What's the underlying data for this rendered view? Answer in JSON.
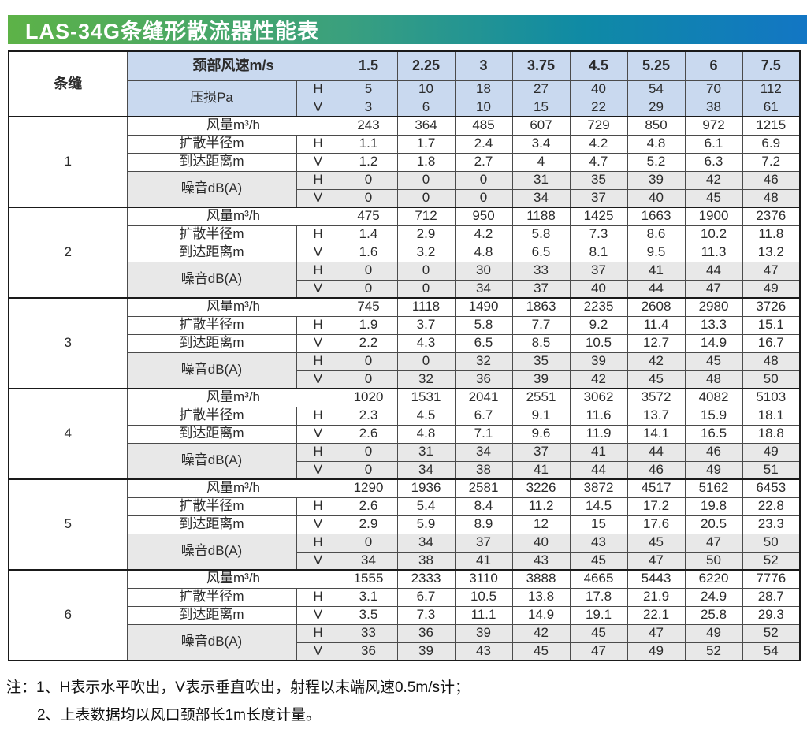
{
  "title": "LAS-34G条缝形散流器性能表",
  "table": {
    "corner_label": "条缝",
    "header": {
      "neck_velocity_label": "颈部风速m/s",
      "velocities": [
        "1.5",
        "2.25",
        "3",
        "3.75",
        "4.5",
        "5.25",
        "6",
        "7.5"
      ],
      "pressure_loss_label": "压损Pa",
      "h_label": "H",
      "v_label": "V",
      "pressure_h": [
        "5",
        "10",
        "18",
        "27",
        "40",
        "54",
        "70",
        "112"
      ],
      "pressure_v": [
        "3",
        "6",
        "10",
        "15",
        "22",
        "29",
        "38",
        "61"
      ]
    },
    "row_labels": {
      "airflow": "风量m³/h",
      "radius": "扩散半径m",
      "distance": "到达距离m",
      "noise": "噪音dB(A)"
    },
    "sections": [
      {
        "slots": "1",
        "airflow": [
          "243",
          "364",
          "485",
          "607",
          "729",
          "850",
          "972",
          "1215"
        ],
        "radius_h": [
          "1.1",
          "1.7",
          "2.4",
          "3.4",
          "4.2",
          "4.8",
          "6.1",
          "6.9"
        ],
        "distance_v": [
          "1.2",
          "1.8",
          "2.7",
          "4",
          "4.7",
          "5.2",
          "6.3",
          "7.2"
        ],
        "noise_h": [
          "0",
          "0",
          "0",
          "31",
          "35",
          "39",
          "42",
          "46"
        ],
        "noise_v": [
          "0",
          "0",
          "0",
          "34",
          "37",
          "40",
          "45",
          "48"
        ]
      },
      {
        "slots": "2",
        "airflow": [
          "475",
          "712",
          "950",
          "1188",
          "1425",
          "1663",
          "1900",
          "2376"
        ],
        "radius_h": [
          "1.4",
          "2.9",
          "4.2",
          "5.8",
          "7.3",
          "8.6",
          "10.2",
          "11.8"
        ],
        "distance_v": [
          "1.6",
          "3.2",
          "4.8",
          "6.5",
          "8.1",
          "9.5",
          "11.3",
          "13.2"
        ],
        "noise_h": [
          "0",
          "0",
          "30",
          "33",
          "37",
          "41",
          "44",
          "47"
        ],
        "noise_v": [
          "0",
          "0",
          "34",
          "37",
          "40",
          "44",
          "47",
          "49"
        ]
      },
      {
        "slots": "3",
        "airflow": [
          "745",
          "1118",
          "1490",
          "1863",
          "2235",
          "2608",
          "2980",
          "3726"
        ],
        "radius_h": [
          "1.9",
          "3.7",
          "5.8",
          "7.7",
          "9.2",
          "11.4",
          "13.3",
          "15.1"
        ],
        "distance_v": [
          "2.2",
          "4.3",
          "6.5",
          "8.5",
          "10.5",
          "12.7",
          "14.9",
          "16.7"
        ],
        "noise_h": [
          "0",
          "0",
          "32",
          "35",
          "39",
          "42",
          "45",
          "48"
        ],
        "noise_v": [
          "0",
          "32",
          "36",
          "39",
          "42",
          "45",
          "48",
          "50"
        ]
      },
      {
        "slots": "4",
        "airflow": [
          "1020",
          "1531",
          "2041",
          "2551",
          "3062",
          "3572",
          "4082",
          "5103"
        ],
        "radius_h": [
          "2.3",
          "4.5",
          "6.7",
          "9.1",
          "11.6",
          "13.7",
          "15.9",
          "18.1"
        ],
        "distance_v": [
          "2.6",
          "4.8",
          "7.1",
          "9.6",
          "11.9",
          "14.1",
          "16.5",
          "18.8"
        ],
        "noise_h": [
          "0",
          "31",
          "34",
          "37",
          "41",
          "44",
          "46",
          "49"
        ],
        "noise_v": [
          "0",
          "34",
          "38",
          "41",
          "44",
          "46",
          "49",
          "51"
        ]
      },
      {
        "slots": "5",
        "airflow": [
          "1290",
          "1936",
          "2581",
          "3226",
          "3872",
          "4517",
          "5162",
          "6453"
        ],
        "radius_h": [
          "2.6",
          "5.4",
          "8.4",
          "11.2",
          "14.5",
          "17.2",
          "19.8",
          "22.8"
        ],
        "distance_v": [
          "2.9",
          "5.9",
          "8.9",
          "12",
          "15",
          "17.6",
          "20.5",
          "23.3"
        ],
        "noise_h": [
          "0",
          "34",
          "37",
          "40",
          "43",
          "45",
          "47",
          "50"
        ],
        "noise_v": [
          "34",
          "38",
          "41",
          "43",
          "45",
          "47",
          "50",
          "52"
        ]
      },
      {
        "slots": "6",
        "airflow": [
          "1555",
          "2333",
          "3110",
          "3888",
          "4665",
          "5443",
          "6220",
          "7776"
        ],
        "radius_h": [
          "3.1",
          "6.7",
          "10.5",
          "13.8",
          "17.8",
          "21.9",
          "24.9",
          "28.7"
        ],
        "distance_v": [
          "3.5",
          "7.3",
          "11.1",
          "14.9",
          "19.1",
          "22.1",
          "25.8",
          "29.3"
        ],
        "noise_h": [
          "33",
          "36",
          "39",
          "42",
          "45",
          "47",
          "49",
          "52"
        ],
        "noise_v": [
          "36",
          "39",
          "43",
          "45",
          "47",
          "49",
          "52",
          "54"
        ]
      }
    ]
  },
  "notes": {
    "line1": "注：1、H表示水平吹出，V表示垂直吹出，射程以末端风速0.5m/s计；",
    "line2": "2、上表数据均以风口颈部长1m长度计量。"
  },
  "colors": {
    "header_bg": "#c9d9ef",
    "noise_bg": "#e8e8e8",
    "title_gradient_left": "#5db247",
    "title_gradient_mid": "#0f8aa5",
    "title_gradient_right": "#1276c4",
    "title_text": "#ffffff"
  }
}
